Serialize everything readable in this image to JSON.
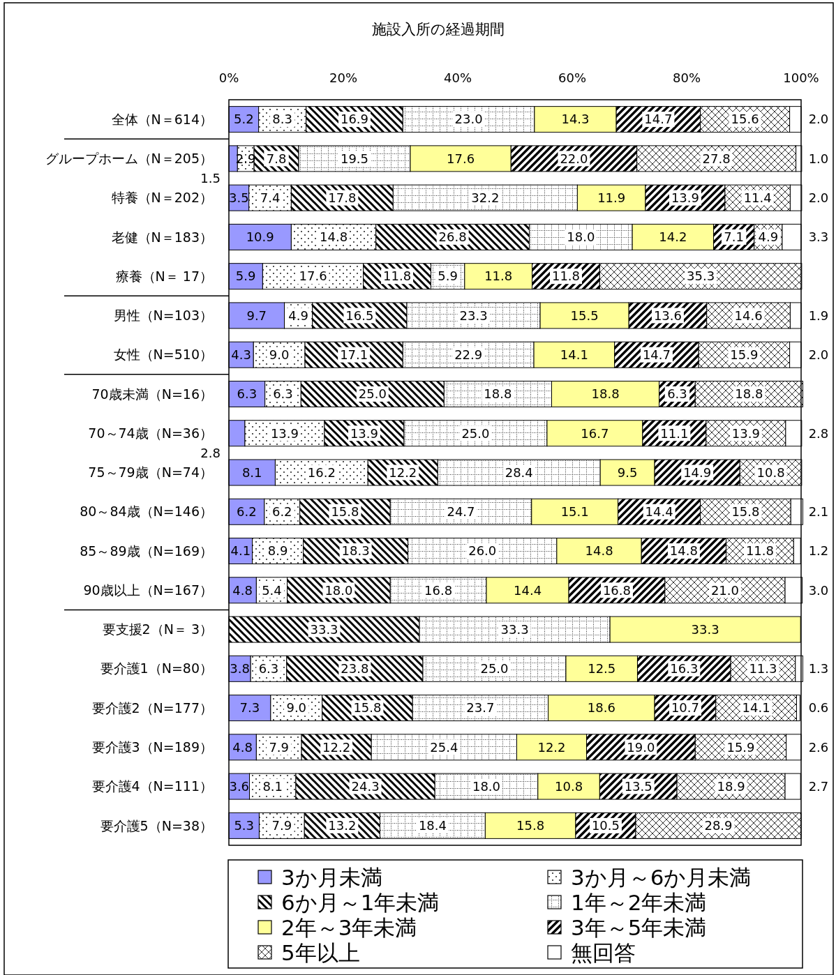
{
  "chart_data": {
    "type": "bar",
    "orientation": "horizontal",
    "stacked": true,
    "title": "施設入所の経過期間",
    "legend": "bottom",
    "grid": false,
    "categories": [
      "全体（N＝614）",
      "グループホーム（N＝205）",
      "特養（N＝202）",
      "老健（N＝183）",
      "療養（N＝ 17）",
      "男性（N=103）",
      "女性（N=510）",
      "70歳未満（N=16）",
      "70～74歳（N=36）",
      "75～79歳（N=74）",
      "80～84歳（N=146）",
      "85～89歳（N=169）",
      "90歳以上（N=167）",
      "要支援2（N＝ 3）",
      "要介護1（N=80）",
      "要介護2（N=177）",
      "要介護3（N=189）",
      "要介護4（N=111）",
      "要介護5（N=38）"
    ],
    "xlim": [
      0,
      100
    ],
    "xticks": [
      {
        "value": 0,
        "label": "0%"
      },
      {
        "value": 20,
        "label": "20%"
      },
      {
        "value": 40,
        "label": "40%"
      },
      {
        "value": 60,
        "label": "60%"
      },
      {
        "value": 80,
        "label": "80%"
      },
      {
        "value": 100,
        "label": "100%"
      }
    ],
    "series": [
      {
        "name": "3か月未満",
        "color": "#9999ff",
        "values": [
          5.2,
          1.5,
          3.5,
          10.9,
          5.9,
          9.7,
          4.3,
          6.3,
          2.8,
          8.1,
          6.2,
          4.1,
          4.8,
          0,
          3.8,
          7.3,
          4.8,
          3.6,
          5.3
        ],
        "value_labels": [
          "5.2",
          "1.5",
          "3.5",
          "10.9",
          "5.9",
          "9.7",
          "4.3",
          "6.3",
          "2.8",
          "8.1",
          "6.2",
          "4.1",
          "4.8",
          null,
          "3.8",
          "7.3",
          "4.8",
          "3.6",
          "5.3"
        ]
      },
      {
        "name": "3か月～6か月未満",
        "color": "#000000",
        "values": [
          8.3,
          2.9,
          7.4,
          14.8,
          17.6,
          4.9,
          9.0,
          6.3,
          13.9,
          16.2,
          6.2,
          8.9,
          5.4,
          0,
          6.3,
          9.0,
          7.9,
          8.1,
          7.9
        ],
        "value_labels": [
          "8.3",
          "2.9",
          "7.4",
          "14.8",
          "17.6",
          "4.9",
          "9.0",
          "6.3",
          "13.9",
          "16.2",
          "6.2",
          "8.9",
          "5.4",
          null,
          "6.3",
          "9.0",
          "7.9",
          "8.1",
          "7.9"
        ]
      },
      {
        "name": "6か月～1年未満",
        "color": "#000000",
        "values": [
          16.9,
          7.8,
          17.8,
          26.8,
          11.8,
          16.5,
          17.1,
          25.0,
          13.9,
          12.2,
          15.8,
          18.3,
          18.0,
          33.3,
          23.8,
          15.8,
          12.2,
          24.3,
          13.2
        ],
        "value_labels": [
          "16.9",
          "7.8",
          "17.8",
          "26.8",
          "11.8",
          "16.5",
          "17.1",
          "25.0",
          "13.9",
          "12.2",
          "15.8",
          "18.3",
          "18.0",
          "33.3",
          "23.8",
          "15.8",
          "12.2",
          "24.3",
          "13.2"
        ]
      },
      {
        "name": "1年～2年未満",
        "color": "#000000",
        "values": [
          23.0,
          19.5,
          32.2,
          18.0,
          5.9,
          23.3,
          22.9,
          18.8,
          25.0,
          28.4,
          24.7,
          26.0,
          16.8,
          33.3,
          25.0,
          23.7,
          25.4,
          18.0,
          18.4
        ],
        "value_labels": [
          "23.0",
          "19.5",
          "32.2",
          "18.0",
          "5.9",
          "23.3",
          "22.9",
          "18.8",
          "25.0",
          "28.4",
          "24.7",
          "26.0",
          "16.8",
          "33.3",
          "25.0",
          "23.7",
          "25.4",
          "18.0",
          "18.4"
        ]
      },
      {
        "name": "2年～3年未満",
        "color": "#ffff99",
        "values": [
          14.3,
          17.6,
          11.9,
          14.2,
          11.8,
          15.5,
          14.1,
          18.8,
          16.7,
          9.5,
          15.1,
          14.8,
          14.4,
          33.3,
          12.5,
          18.6,
          12.2,
          10.8,
          15.8
        ],
        "value_labels": [
          "14.3",
          "17.6",
          "11.9",
          "14.2",
          "11.8",
          "15.5",
          "14.1",
          "18.8",
          "16.7",
          "9.5",
          "15.1",
          "14.8",
          "14.4",
          "33.3",
          "12.5",
          "18.6",
          "12.2",
          "10.8",
          "15.8"
        ]
      },
      {
        "name": "3年～5年未満",
        "color": "#000000",
        "values": [
          14.7,
          22.0,
          13.9,
          7.1,
          11.8,
          13.6,
          14.7,
          6.3,
          11.1,
          14.9,
          14.4,
          14.8,
          16.8,
          0,
          16.3,
          10.7,
          19.0,
          13.5,
          10.5
        ],
        "value_labels": [
          "14.7",
          "22.0",
          "13.9",
          "7.1",
          "11.8",
          "13.6",
          "14.7",
          "6.3",
          "11.1",
          "14.9",
          "14.4",
          "14.8",
          "16.8",
          null,
          "16.3",
          "10.7",
          "19.0",
          "13.5",
          "10.5"
        ]
      },
      {
        "name": "5年以上",
        "color": "#000000",
        "values": [
          15.6,
          27.8,
          11.4,
          4.9,
          35.3,
          14.6,
          15.9,
          18.8,
          13.9,
          10.8,
          15.8,
          11.8,
          21.0,
          0,
          11.3,
          14.1,
          15.9,
          18.9,
          28.9
        ],
        "value_labels": [
          "15.6",
          "27.8",
          "11.4",
          "4.9",
          "35.3",
          "14.6",
          "15.9",
          "18.8",
          "13.9",
          "10.8",
          "15.8",
          "11.8",
          "21.0",
          null,
          "11.3",
          "14.1",
          "15.9",
          "18.9",
          "28.9"
        ]
      },
      {
        "name": "無回答",
        "color": "#ffffff",
        "values": [
          2.0,
          1.0,
          2.0,
          3.3,
          0,
          1.9,
          2.0,
          0,
          2.8,
          0,
          2.1,
          1.2,
          3.0,
          0,
          1.3,
          0.6,
          2.6,
          2.7,
          0
        ],
        "value_labels": [
          "2.0",
          "1.0",
          "2.0",
          "3.3",
          null,
          "1.9",
          "2.0",
          null,
          "2.8",
          null,
          "2.1",
          "1.2",
          "3.0",
          null,
          "1.3",
          "0.6",
          "2.6",
          "2.7",
          null
        ]
      }
    ]
  }
}
